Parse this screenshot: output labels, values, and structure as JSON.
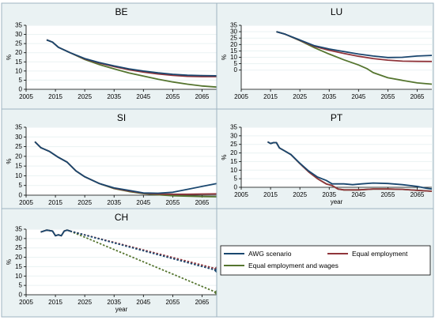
{
  "legend": {
    "items": [
      {
        "label": "AWG scenario",
        "color": "#1a476f"
      },
      {
        "label": "Equal employment",
        "color": "#90353b"
      },
      {
        "label": "Equal employment and wages",
        "color": "#55752f"
      }
    ]
  },
  "chart_data": [
    {
      "type": "line",
      "title": "BE",
      "xlabel": "",
      "ylabel": "%",
      "xlim": [
        2005,
        2070
      ],
      "ylim": [
        0,
        35
      ],
      "xticks": [
        2005,
        2015,
        2025,
        2035,
        2045,
        2055,
        2065
      ],
      "yticks": [
        0,
        5,
        10,
        15,
        20,
        25,
        30,
        35
      ],
      "grid": "horizontal",
      "series": [
        {
          "name": "AWG scenario",
          "color": "#1a476f",
          "points": [
            [
              2012,
              27
            ],
            [
              2014,
              25.8
            ],
            [
              2016,
              23
            ],
            [
              2020,
              20
            ],
            [
              2025,
              16.8
            ],
            [
              2030,
              14.6
            ],
            [
              2035,
              12.8
            ],
            [
              2040,
              11.2
            ],
            [
              2045,
              10
            ],
            [
              2050,
              9
            ],
            [
              2055,
              8.2
            ],
            [
              2060,
              7.7
            ],
            [
              2065,
              7.5
            ],
            [
              2070,
              7.4
            ]
          ]
        },
        {
          "name": "Equal employment",
          "color": "#90353b",
          "points": [
            [
              2012,
              27
            ],
            [
              2014,
              25.8
            ],
            [
              2016,
              23
            ],
            [
              2020,
              20
            ],
            [
              2025,
              16.6
            ],
            [
              2030,
              14.3
            ],
            [
              2035,
              12.4
            ],
            [
              2040,
              10.7
            ],
            [
              2045,
              9.4
            ],
            [
              2050,
              8.4
            ],
            [
              2055,
              7.6
            ],
            [
              2060,
              7.1
            ],
            [
              2065,
              6.9
            ],
            [
              2070,
              6.9
            ]
          ]
        },
        {
          "name": "Equal employment and wages",
          "color": "#55752f",
          "points": [
            [
              2012,
              27
            ],
            [
              2014,
              25.8
            ],
            [
              2016,
              23
            ],
            [
              2020,
              20
            ],
            [
              2025,
              16.3
            ],
            [
              2030,
              13.5
            ],
            [
              2035,
              11.2
            ],
            [
              2040,
              9
            ],
            [
              2045,
              7.2
            ],
            [
              2050,
              5.5
            ],
            [
              2055,
              4
            ],
            [
              2060,
              2.8
            ],
            [
              2065,
              1.8
            ],
            [
              2070,
              1.2
            ]
          ]
        }
      ]
    },
    {
      "type": "line",
      "title": "LU",
      "xlabel": "",
      "ylabel": "%",
      "xlim": [
        2005,
        2070
      ],
      "ylim": [
        -15,
        35
      ],
      "xticks": [
        2005,
        2015,
        2025,
        2035,
        2045,
        2055,
        2065
      ],
      "yticks": [
        0,
        5,
        10,
        15,
        20,
        25,
        30,
        35
      ],
      "grid": "horizontal",
      "series": [
        {
          "name": "AWG scenario",
          "color": "#1a476f",
          "points": [
            [
              2017,
              30
            ],
            [
              2020,
              28
            ],
            [
              2025,
              23.5
            ],
            [
              2030,
              19
            ],
            [
              2035,
              16.5
            ],
            [
              2040,
              14.5
            ],
            [
              2045,
              12.5
            ],
            [
              2050,
              11
            ],
            [
              2055,
              9.8
            ],
            [
              2060,
              10
            ],
            [
              2065,
              11
            ],
            [
              2070,
              11.5
            ]
          ]
        },
        {
          "name": "Equal employment",
          "color": "#90353b",
          "points": [
            [
              2017,
              30
            ],
            [
              2020,
              28
            ],
            [
              2025,
              23.3
            ],
            [
              2030,
              18.5
            ],
            [
              2035,
              15.5
            ],
            [
              2040,
              13
            ],
            [
              2045,
              10.8
            ],
            [
              2050,
              9
            ],
            [
              2055,
              7.8
            ],
            [
              2060,
              7
            ],
            [
              2065,
              6.8
            ],
            [
              2070,
              6.7
            ]
          ]
        },
        {
          "name": "Equal employment and wages",
          "color": "#55752f",
          "points": [
            [
              2017,
              30
            ],
            [
              2020,
              28
            ],
            [
              2025,
              23
            ],
            [
              2030,
              17.5
            ],
            [
              2035,
              12.5
            ],
            [
              2040,
              8
            ],
            [
              2045,
              4
            ],
            [
              2048,
              1
            ],
            [
              2050,
              -2
            ],
            [
              2055,
              -6
            ],
            [
              2060,
              -8
            ],
            [
              2065,
              -10
            ],
            [
              2070,
              -11
            ]
          ]
        }
      ]
    },
    {
      "type": "line",
      "title": "SI",
      "xlabel": "",
      "ylabel": "%",
      "xlim": [
        2005,
        2070
      ],
      "ylim": [
        0,
        35
      ],
      "xticks": [
        2005,
        2015,
        2025,
        2035,
        2045,
        2055,
        2065
      ],
      "yticks": [
        0,
        5,
        10,
        15,
        20,
        25,
        30,
        35
      ],
      "grid": "horizontal",
      "series": [
        {
          "name": "AWG scenario",
          "color": "#1a476f",
          "points": [
            [
              2008,
              27.5
            ],
            [
              2010,
              24.5
            ],
            [
              2013,
              22.5
            ],
            [
              2016,
              19.5
            ],
            [
              2019,
              17
            ],
            [
              2022,
              12.5
            ],
            [
              2025,
              9.5
            ],
            [
              2030,
              6
            ],
            [
              2035,
              3.8
            ],
            [
              2040,
              2.5
            ],
            [
              2045,
              1.2
            ],
            [
              2050,
              1
            ],
            [
              2055,
              1.5
            ],
            [
              2060,
              3
            ],
            [
              2065,
              4.5
            ],
            [
              2070,
              6
            ]
          ]
        },
        {
          "name": "Equal employment",
          "color": "#90353b",
          "points": [
            [
              2008,
              27.5
            ],
            [
              2010,
              24.5
            ],
            [
              2013,
              22.5
            ],
            [
              2016,
              19.5
            ],
            [
              2019,
              17
            ],
            [
              2022,
              12.5
            ],
            [
              2025,
              9.5
            ],
            [
              2030,
              6
            ],
            [
              2035,
              3.6
            ],
            [
              2040,
              2.2
            ],
            [
              2045,
              1
            ],
            [
              2050,
              0.6
            ],
            [
              2055,
              0.5
            ],
            [
              2060,
              0.5
            ],
            [
              2065,
              0.6
            ],
            [
              2070,
              0.7
            ]
          ]
        },
        {
          "name": "Equal employment and wages",
          "color": "#55752f",
          "points": [
            [
              2008,
              27.5
            ],
            [
              2010,
              24.5
            ],
            [
              2013,
              22.5
            ],
            [
              2016,
              19.5
            ],
            [
              2019,
              17
            ],
            [
              2022,
              12.5
            ],
            [
              2025,
              9.5
            ],
            [
              2030,
              6
            ],
            [
              2035,
              3.4
            ],
            [
              2040,
              1.9
            ],
            [
              2045,
              0.8
            ],
            [
              2050,
              0.2
            ],
            [
              2055,
              -0.3
            ],
            [
              2060,
              -0.5
            ],
            [
              2065,
              -0.7
            ],
            [
              2070,
              -0.8
            ]
          ]
        }
      ]
    },
    {
      "type": "line",
      "title": "PT",
      "xlabel": "year",
      "ylabel": "%",
      "xlim": [
        2005,
        2070
      ],
      "ylim": [
        0,
        35
      ],
      "xticks": [
        2005,
        2015,
        2025,
        2035,
        2045,
        2055,
        2065
      ],
      "yticks": [
        0,
        5,
        10,
        15,
        20,
        25,
        30,
        35
      ],
      "grid": "horizontal",
      "series": [
        {
          "name": "AWG scenario",
          "color": "#1a476f",
          "points": [
            [
              2014,
              26.5
            ],
            [
              2015,
              25.5
            ],
            [
              2016,
              26
            ],
            [
              2017,
              26
            ],
            [
              2018,
              23
            ],
            [
              2020,
              21
            ],
            [
              2022,
              19
            ],
            [
              2025,
              14
            ],
            [
              2028,
              9.5
            ],
            [
              2031,
              6
            ],
            [
              2034,
              4
            ],
            [
              2036,
              2
            ],
            [
              2040,
              2
            ],
            [
              2043,
              1.5
            ],
            [
              2046,
              2
            ],
            [
              2050,
              2.5
            ],
            [
              2055,
              2.2
            ],
            [
              2060,
              1.5
            ],
            [
              2065,
              0.5
            ],
            [
              2068,
              -0.5
            ],
            [
              2070,
              -1
            ]
          ]
        },
        {
          "name": "Equal employment",
          "color": "#90353b",
          "points": [
            [
              2014,
              26.5
            ],
            [
              2015,
              25.5
            ],
            [
              2016,
              26
            ],
            [
              2017,
              26
            ],
            [
              2018,
              23
            ],
            [
              2020,
              21
            ],
            [
              2022,
              19
            ],
            [
              2025,
              13.8
            ],
            [
              2028,
              9
            ],
            [
              2031,
              5
            ],
            [
              2034,
              2
            ],
            [
              2036,
              1
            ],
            [
              2038,
              -1
            ],
            [
              2040,
              -1.5
            ],
            [
              2045,
              -1.5
            ],
            [
              2050,
              -1
            ],
            [
              2055,
              -1
            ],
            [
              2060,
              -1.2
            ],
            [
              2065,
              -1.8
            ],
            [
              2070,
              -2.3
            ]
          ]
        },
        {
          "name": "Equal employment and wages",
          "color": "#55752f",
          "points": [
            [
              2014,
              26.5
            ],
            [
              2015,
              25.5
            ],
            [
              2016,
              26
            ],
            [
              2017,
              26
            ],
            [
              2018,
              23
            ],
            [
              2020,
              21
            ],
            [
              2022,
              19
            ],
            [
              2025,
              13.8
            ],
            [
              2028,
              9
            ],
            [
              2031,
              5
            ],
            [
              2034,
              2
            ],
            [
              2036,
              1
            ],
            [
              2038,
              -1
            ],
            [
              2040,
              -1.5
            ],
            [
              2045,
              -1.5
            ],
            [
              2050,
              -1
            ],
            [
              2055,
              -1
            ],
            [
              2060,
              -1.2
            ],
            [
              2065,
              -1.8
            ],
            [
              2070,
              -2.3
            ]
          ]
        }
      ]
    },
    {
      "type": "line",
      "title": "CH",
      "xlabel": "year",
      "ylabel": "%",
      "xlim": [
        2005,
        2070
      ],
      "ylim": [
        0,
        35
      ],
      "xticks": [
        2005,
        2015,
        2025,
        2035,
        2045,
        2055,
        2065
      ],
      "yticks": [
        0,
        5,
        10,
        15,
        20,
        25,
        30,
        35
      ],
      "grid": "horizontal",
      "series": [
        {
          "name": "AWG scenario",
          "color": "#1a476f",
          "points": [
            [
              2010,
              33.5
            ],
            [
              2012,
              34.5
            ],
            [
              2014,
              34
            ],
            [
              2015,
              31.5
            ],
            [
              2016,
              32
            ],
            [
              2017,
              31.5
            ],
            [
              2018,
              34
            ],
            [
              2019,
              34.5
            ],
            [
              2020,
              34
            ]
          ],
          "projection": [
            [
              2020,
              34
            ],
            [
              2070,
              13
            ]
          ],
          "end_marker": true
        },
        {
          "name": "Equal employment",
          "color": "#90353b",
          "points": [
            [
              2010,
              33.5
            ],
            [
              2012,
              34.5
            ],
            [
              2014,
              34
            ],
            [
              2015,
              31.5
            ],
            [
              2016,
              32
            ],
            [
              2017,
              31.5
            ],
            [
              2018,
              34
            ],
            [
              2019,
              34.5
            ],
            [
              2020,
              34
            ]
          ],
          "projection": [
            [
              2020,
              34
            ],
            [
              2070,
              13.8
            ]
          ],
          "end_marker": true
        },
        {
          "name": "Equal employment and wages",
          "color": "#55752f",
          "points": [
            [
              2010,
              33.5
            ],
            [
              2012,
              34.5
            ],
            [
              2014,
              34
            ],
            [
              2015,
              31.5
            ],
            [
              2016,
              32
            ],
            [
              2017,
              31.5
            ],
            [
              2018,
              34
            ],
            [
              2019,
              34.5
            ],
            [
              2020,
              34
            ]
          ],
          "projection": [
            [
              2020,
              34
            ],
            [
              2070,
              1.2
            ]
          ],
          "end_marker": true
        }
      ]
    }
  ]
}
